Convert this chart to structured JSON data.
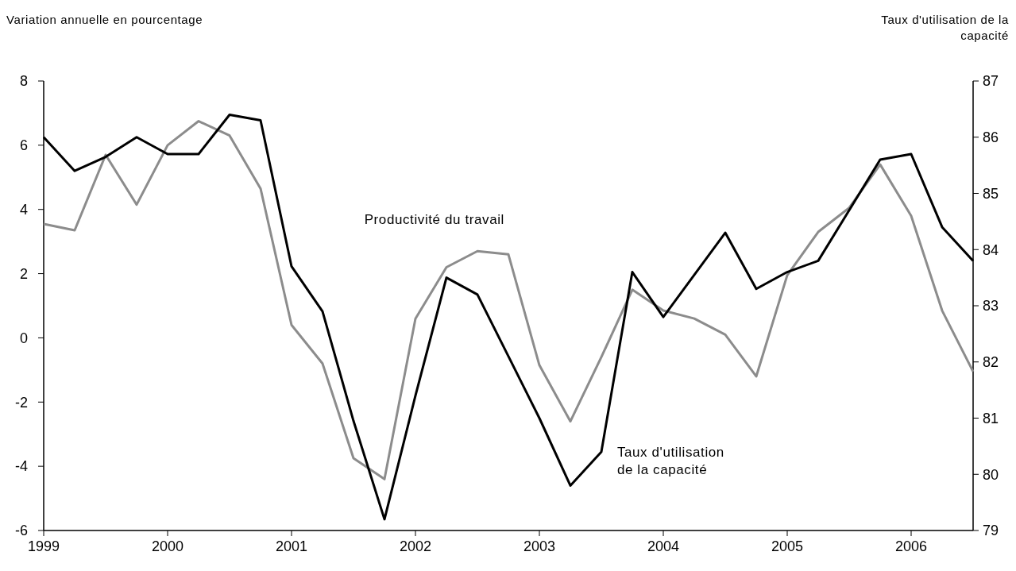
{
  "chart_data": {
    "type": "line",
    "ylabel": "Variation annuelle en pourcentage",
    "y2label": "Taux d'utilisation de la\ncapacité",
    "x": [
      1999,
      1999.25,
      1999.5,
      1999.75,
      2000,
      2000.25,
      2000.5,
      2000.75,
      2001,
      2001.25,
      2001.5,
      2001.75,
      2002,
      2002.25,
      2002.5,
      2002.75,
      2003,
      2003.25,
      2003.5,
      2003.75,
      2004,
      2004.25,
      2004.5,
      2004.75,
      2005,
      2005.25,
      2005.5,
      2005.75,
      2006,
      2006.25,
      2006.5
    ],
    "xlim": [
      1999,
      2006.5
    ],
    "xticks": [
      1999,
      2000,
      2001,
      2002,
      2003,
      2004,
      2005,
      2006
    ],
    "ylim": [
      -6,
      8
    ],
    "yticks": [
      -6,
      -4,
      -2,
      0,
      2,
      4,
      6,
      8
    ],
    "y2lim": [
      79,
      87
    ],
    "y2ticks": [
      79,
      80,
      81,
      82,
      83,
      84,
      85,
      86,
      87
    ],
    "series": [
      {
        "name": "Productivité du travail",
        "color": "#8c8c8c",
        "values": [
          3.55,
          3.35,
          5.7,
          4.15,
          6.0,
          6.75,
          6.3,
          4.65,
          0.4,
          -0.8,
          -3.75,
          -4.4,
          0.6,
          2.2,
          2.7,
          2.6,
          -0.85,
          -2.6,
          -0.6,
          1.5,
          0.85,
          0.6,
          0.1,
          -1.2,
          1.95,
          3.3,
          4.05,
          5.4,
          3.8,
          0.85,
          -1.05
        ]
      },
      {
        "name": "Taux d'utilisation\nde la capacité",
        "color": "#000000",
        "axis": "y2",
        "values": [
          86.0,
          85.4,
          85.65,
          86.0,
          85.7,
          85.7,
          86.4,
          86.3,
          83.7,
          82.9,
          80.95,
          79.2,
          81.4,
          83.5,
          83.2,
          82.1,
          81.0,
          79.8,
          80.4,
          83.6,
          82.8,
          83.55,
          84.3,
          83.3,
          83.6,
          83.8,
          84.7,
          85.6,
          85.7,
          84.4,
          83.8
        ]
      }
    ],
    "grid": false
  }
}
